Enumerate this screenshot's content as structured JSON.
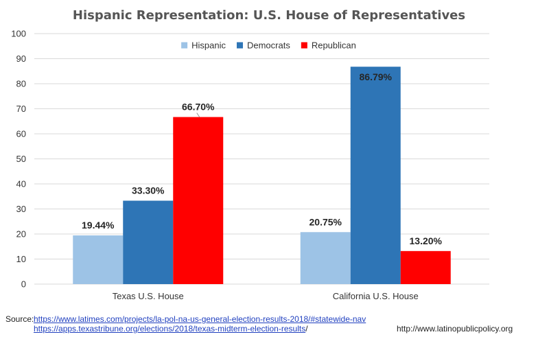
{
  "chart_data": {
    "type": "bar",
    "title": "Hispanic Representation: U.S. House of Representatives",
    "categories": [
      "Texas U.S. House",
      "California U.S. House"
    ],
    "series": [
      {
        "name": "Hispanic",
        "values": [
          19.44,
          20.75
        ],
        "labels": [
          "19.44%",
          "20.75%"
        ],
        "color": "#9dc3e6"
      },
      {
        "name": "Democrats",
        "values": [
          33.3,
          86.79
        ],
        "labels": [
          "33.30%",
          "86.79%"
        ],
        "color": "#2e75b6"
      },
      {
        "name": "Republican",
        "values": [
          66.7,
          13.2
        ],
        "labels": [
          "66.70%",
          "13.20%"
        ],
        "color": "#ff0000"
      }
    ],
    "ylim": [
      0,
      100
    ],
    "yticks": [
      "0",
      "10",
      "20",
      "30",
      "40",
      "50",
      "60",
      "70",
      "80",
      "90",
      "100"
    ],
    "grid": true,
    "legend_position": "top-center"
  },
  "footer": {
    "source_label": "Source:",
    "source_link_1": "https://www.latimes.com/projects/la-pol-na-us-general-election-results-2018/#statewide-nav",
    "source_link_2": "https://apps.texastribune.org/elections/2018/texas-midterm-election-results",
    "source_link_2_tail": "/",
    "site_url": "http://www.latinopublicpolicy.org"
  }
}
